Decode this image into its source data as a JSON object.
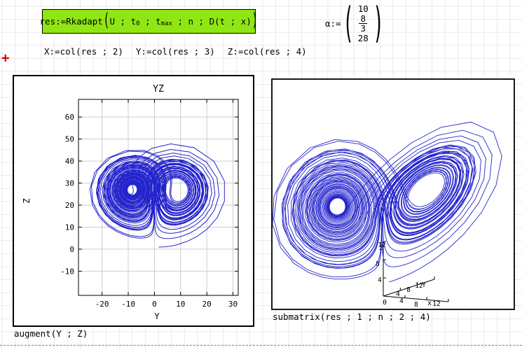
{
  "page": {
    "grid_color": "#e9e9e9",
    "highlight_green": "#8fe614",
    "trace_color": "#2424cc",
    "cursor_color": "#d40000"
  },
  "cursor_plus": "+",
  "formula_res": {
    "lhs": "res:=Rkadapt",
    "open_paren": "(",
    "a1": "U ; t",
    "s1": "0",
    "a2": " ; t",
    "s2": "max",
    "a3": " ; n ; D",
    "a4": "(t ; x)",
    "close_paren": ")"
  },
  "alpha": {
    "lhs": "α:=",
    "open_paren": "(",
    "v1": "10",
    "v2_num": "8",
    "v2_den": "3",
    "v3": "28",
    "close_paren": ")"
  },
  "defs": {
    "x": "X:=col(res ; 2)",
    "y": "Y:=col(res ; 3)",
    "z": "Z:=col(res ; 4)"
  },
  "left_plot": {
    "title": "YZ",
    "xlabel": "Y",
    "ylabel": "Z",
    "xticks": [
      -20,
      -10,
      0,
      10,
      20,
      30
    ],
    "yticks": [
      60,
      50,
      40,
      30,
      20,
      10,
      0,
      -10
    ],
    "xrange": [
      -29,
      32
    ],
    "yrange": [
      -21,
      68
    ],
    "caption": "augment(Y ; Z)"
  },
  "right_plot": {
    "caption": "submatrix(res ; 1 ; n ; 2 ; 4)",
    "origin_label": "0",
    "x_axis": {
      "label": "x",
      "ticks": [
        "4",
        "8",
        "12"
      ]
    },
    "y_axis": {
      "label": "Y",
      "ticks": [
        "4",
        "8",
        "12"
      ]
    },
    "z_axis": {
      "label": "Z",
      "ticks": [
        "4",
        "8",
        "12"
      ]
    }
  },
  "chart_data": [
    {
      "type": "line",
      "title": "YZ",
      "xlabel": "Y",
      "ylabel": "Z",
      "xlim": [
        -29,
        32
      ],
      "ylim": [
        -21,
        68
      ],
      "grid": true,
      "description": "Lorenz attractor trajectory projected on Y-Z plane, single blue trace",
      "generator": {
        "system": "lorenz",
        "sigma": 10,
        "beta": 2.6666667,
        "rho": 28,
        "dt": 0.024,
        "steps": 2600,
        "initial": [
          1,
          1,
          1
        ]
      }
    },
    {
      "type": "line",
      "title": "submatrix(res ; 1 ; n ; 2 ; 4)",
      "description": "3D line plot of the same Lorenz trajectory (X,Y,Z) with small corner axes labeled 0,4,8,12",
      "generator": {
        "system": "lorenz",
        "sigma": 10,
        "beta": 2.6666667,
        "rho": 28,
        "dt": 0.024,
        "steps": 2600,
        "initial": [
          1,
          1,
          1
        ]
      }
    }
  ]
}
